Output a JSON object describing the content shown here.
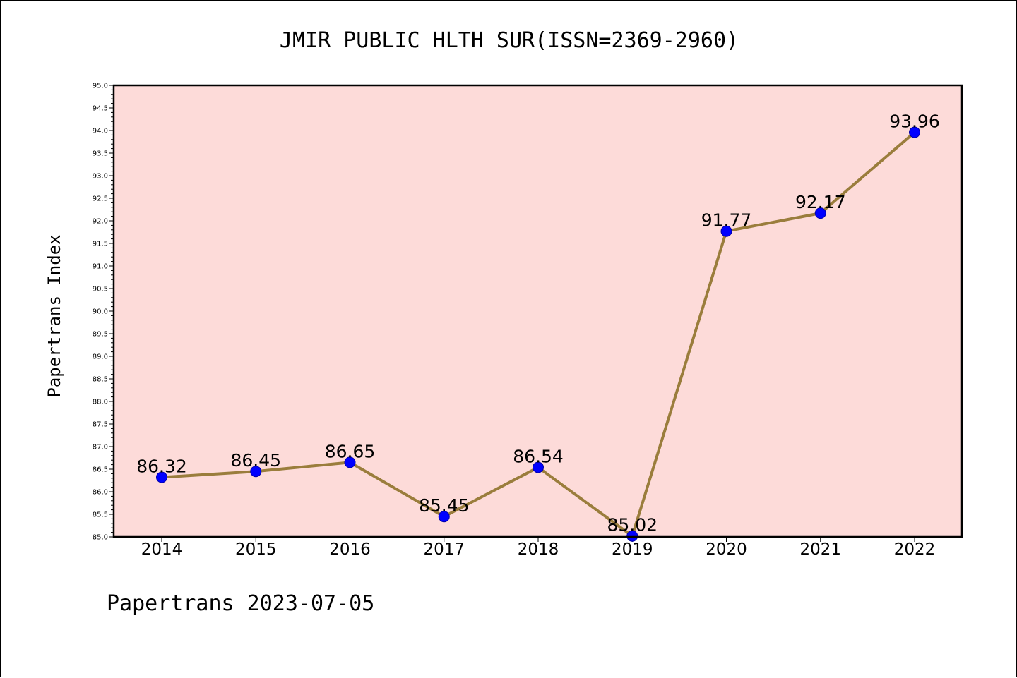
{
  "chart_data": {
    "type": "line",
    "title": "JMIR PUBLIC HLTH SUR(ISSN=2369-2960)",
    "xlabel": "",
    "ylabel": "Papertrans Index",
    "categories": [
      "2014",
      "2015",
      "2016",
      "2017",
      "2018",
      "2019",
      "2020",
      "2021",
      "2022"
    ],
    "values": [
      86.32,
      86.45,
      86.65,
      85.45,
      86.54,
      85.02,
      91.77,
      92.17,
      93.96
    ],
    "data_labels": [
      "86.32",
      "86.45",
      "86.65",
      "85.45",
      "86.54",
      "85.02",
      "91.77",
      "92.17",
      "93.96"
    ],
    "ylim": [
      85.0,
      95.0
    ],
    "yticks": [
      "85.0",
      "85.5",
      "86.0",
      "86.5",
      "87.0",
      "87.5",
      "88.0",
      "88.5",
      "89.0",
      "89.5",
      "90.0",
      "90.5",
      "91.0",
      "91.5",
      "92.0",
      "92.5",
      "93.0",
      "93.5",
      "94.0",
      "94.5",
      "95.0"
    ],
    "grid": false,
    "legend": "none",
    "colors": {
      "plot_background": "#fddbd9",
      "line": "#9a7d3c",
      "marker": "#0000ff"
    }
  },
  "footer": "Papertrans 2023-07-05"
}
